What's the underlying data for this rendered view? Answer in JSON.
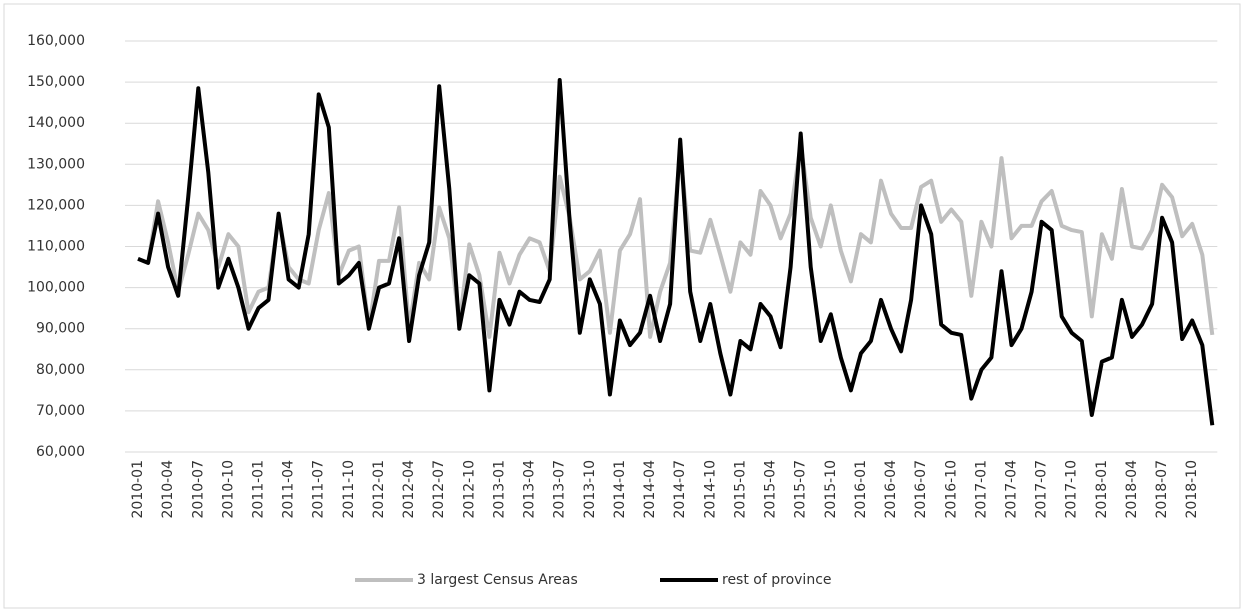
{
  "chart_data": {
    "type": "line",
    "categories": [
      "2010-01",
      null,
      null,
      "2010-04",
      null,
      null,
      "2010-07",
      null,
      null,
      "2010-10",
      null,
      null,
      "2011-01",
      null,
      null,
      "2011-04",
      null,
      null,
      "2011-07",
      null,
      null,
      "2011-10",
      null,
      null,
      "2012-01",
      null,
      null,
      "2012-04",
      null,
      null,
      "2012-07",
      null,
      null,
      "2012-10",
      null,
      null,
      "2013-01",
      null,
      null,
      "2013-04",
      null,
      null,
      "2013-07",
      null,
      null,
      "2013-10",
      null,
      null,
      "2014-01",
      null,
      null,
      "2014-04",
      null,
      null,
      "2014-07",
      null,
      null,
      "2014-10",
      null,
      null,
      "2015-01",
      null,
      null,
      "2015-04",
      null,
      null,
      "2015-07",
      null,
      null,
      "2015-10",
      null,
      null,
      "2016-01",
      null,
      null,
      "2016-04",
      null,
      null,
      "2016-07",
      null,
      null,
      "2016-10",
      null,
      null,
      "2017-01",
      null,
      null,
      "2017-04",
      null,
      null,
      "2017-07",
      null,
      null,
      "2017-10",
      null,
      null,
      "2018-01",
      null,
      null,
      "2018-04",
      null,
      null,
      "2018-07",
      null,
      null,
      "2018-10",
      null,
      null
    ],
    "series": [
      {
        "name": "3 largest Census Areas",
        "color": "#bfbfbf",
        "values": [
          107000,
          106000,
          121000,
          111000,
          99000,
          108000,
          118000,
          114000,
          105000,
          113000,
          110000,
          94000,
          99000,
          100000,
          117000,
          105000,
          102000,
          101000,
          114000,
          123000,
          103000,
          109000,
          110000,
          90000,
          106500,
          106500,
          119500,
          90000,
          106000,
          102000,
          119500,
          112000,
          91000,
          110500,
          103000,
          88000,
          108500,
          101000,
          108000,
          112000,
          111000,
          104000,
          127000,
          117000,
          102000,
          104000,
          109000,
          89000,
          109000,
          113000,
          121500,
          88000,
          99000,
          106000,
          133000,
          109000,
          108500,
          116500,
          108000,
          99000,
          111000,
          108000,
          123500,
          120000,
          112000,
          118000,
          135000,
          117000,
          110000,
          120000,
          109000,
          101500,
          113000,
          111000,
          126000,
          118000,
          114500,
          114500,
          124500,
          126000,
          116000,
          119000,
          116000,
          98000,
          116000,
          110000,
          131500,
          112000,
          115000,
          115000,
          121000,
          123500,
          115000,
          114000,
          113500,
          93000,
          113000,
          107000,
          124000,
          110000,
          109500,
          114000,
          125000,
          122000,
          112500,
          115500,
          108000,
          88500
        ]
      },
      {
        "name": "rest of province",
        "color": "#000000",
        "values": [
          107000,
          106000,
          118000,
          105000,
          98000,
          122000,
          148500,
          128000,
          100000,
          107000,
          100000,
          90000,
          95000,
          97000,
          118000,
          102000,
          100000,
          113000,
          147000,
          139000,
          101000,
          103000,
          106000,
          90000,
          100000,
          101000,
          112000,
          87000,
          103000,
          111000,
          149000,
          124000,
          90000,
          103000,
          101000,
          75000,
          97000,
          91000,
          99000,
          97000,
          96500,
          102000,
          150500,
          116000,
          89000,
          102000,
          96000,
          74000,
          92000,
          86000,
          89000,
          98000,
          87000,
          96000,
          136000,
          99000,
          87000,
          96000,
          84000,
          74000,
          87000,
          85000,
          96000,
          93000,
          85500,
          105000,
          137500,
          105000,
          87000,
          93500,
          83000,
          75000,
          84000,
          87000,
          97000,
          90000,
          84500,
          97000,
          120000,
          113000,
          91000,
          89000,
          88500,
          73000,
          80000,
          83000,
          104000,
          86000,
          90000,
          99000,
          116000,
          114000,
          93000,
          89000,
          87000,
          69000,
          82000,
          83000,
          97000,
          88000,
          91000,
          96000,
          117000,
          111000,
          87500,
          92000,
          86000,
          66500
        ]
      }
    ],
    "ylim": [
      60000,
      160000
    ],
    "yticks": [
      {
        "value": 60000,
        "label": "60,000"
      },
      {
        "value": 70000,
        "label": "70,000"
      },
      {
        "value": 80000,
        "label": "80,000"
      },
      {
        "value": 90000,
        "label": "90,000"
      },
      {
        "value": 100000,
        "label": "100,000"
      },
      {
        "value": 110000,
        "label": "110,000"
      },
      {
        "value": 120000,
        "label": "120,000"
      },
      {
        "value": 130000,
        "label": "130,000"
      },
      {
        "value": 140000,
        "label": "140,000"
      },
      {
        "value": 150000,
        "label": "150,000"
      },
      {
        "value": 160000,
        "label": "160,000"
      }
    ],
    "grid": true,
    "legend": "bottom"
  }
}
